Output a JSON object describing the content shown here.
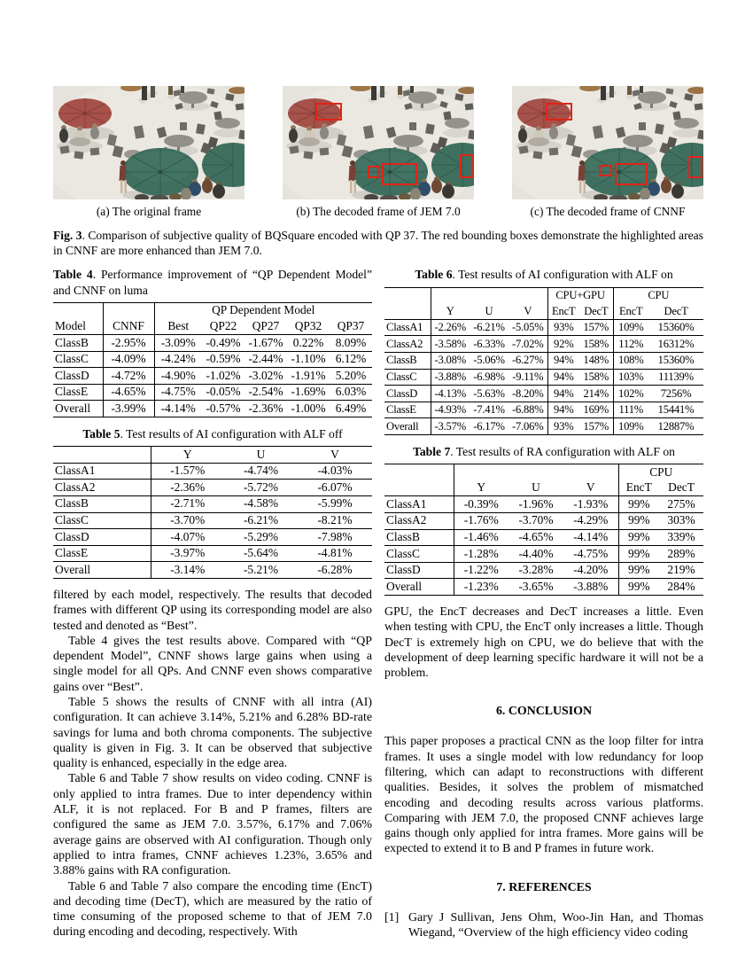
{
  "figure3": {
    "label": "Fig. 3",
    "caption": ". Comparison of subjective quality of BQSquare encoded with QP 37. The red bounding boxes demonstrate the highlighted areas in CNNF are more enhanced than JEM 7.0.",
    "captions": [
      "(a) The original frame",
      "(b) The decoded frame of JEM 7.0",
      "(c) The decoded frame of CNNF"
    ]
  },
  "tables": {
    "t4": {
      "label": "Table 4",
      "caption": ". Performance improvement of “QP Dependent Model” and CNNF on luma",
      "group_header": "QP Dependent Model",
      "headers": [
        "Model",
        "CNNF",
        "Best",
        "QP22",
        "QP27",
        "QP32",
        "QP37"
      ],
      "rows": [
        [
          "ClassB",
          "-2.95%",
          "-3.09%",
          "-0.49%",
          "-1.67%",
          "0.22%",
          "8.09%"
        ],
        [
          "ClassC",
          "-4.09%",
          "-4.24%",
          "-0.59%",
          "-2.44%",
          "-1.10%",
          "6.12%"
        ],
        [
          "ClassD",
          "-4.72%",
          "-4.90%",
          "-1.02%",
          "-3.02%",
          "-1.91%",
          "5.20%"
        ],
        [
          "ClassE",
          "-4.65%",
          "-4.75%",
          "-0.05%",
          "-2.54%",
          "-1.69%",
          "6.03%"
        ],
        [
          "Overall",
          "-3.99%",
          "-4.14%",
          "-0.57%",
          "-2.36%",
          "-1.00%",
          "6.49%"
        ]
      ]
    },
    "t5": {
      "label": "Table 5",
      "caption": ". Test results of AI configuration with ALF off",
      "headers": [
        "",
        "Y",
        "U",
        "V"
      ],
      "rows": [
        [
          "ClassA1",
          "-1.57%",
          "-4.74%",
          "-4.03%"
        ],
        [
          "ClassA2",
          "-2.36%",
          "-5.72%",
          "-6.07%"
        ],
        [
          "ClassB",
          "-2.71%",
          "-4.58%",
          "-5.99%"
        ],
        [
          "ClassC",
          "-3.70%",
          "-6.21%",
          "-8.21%"
        ],
        [
          "ClassD",
          "-4.07%",
          "-5.29%",
          "-7.98%"
        ],
        [
          "ClassE",
          "-3.97%",
          "-5.64%",
          "-4.81%"
        ],
        [
          "Overall",
          "-3.14%",
          "-5.21%",
          "-6.28%"
        ]
      ]
    },
    "t6": {
      "label": "Table 6",
      "caption": ". Test results of AI configuration with ALF on",
      "group_headers": [
        "CPU+GPU",
        "CPU"
      ],
      "headers": [
        "",
        "Y",
        "U",
        "V",
        "EncT",
        "DecT",
        "EncT",
        "DecT"
      ],
      "rows": [
        [
          "ClassA1",
          "-2.26%",
          "-6.21%",
          "-5.05%",
          "93%",
          "157%",
          "109%",
          "15360%"
        ],
        [
          "ClassA2",
          "-3.58%",
          "-6.33%",
          "-7.02%",
          "92%",
          "158%",
          "112%",
          "16312%"
        ],
        [
          "ClassB",
          "-3.08%",
          "-5.06%",
          "-6.27%",
          "94%",
          "148%",
          "108%",
          "15360%"
        ],
        [
          "ClassC",
          "-3.88%",
          "-6.98%",
          "-9.11%",
          "94%",
          "158%",
          "103%",
          "11139%"
        ],
        [
          "ClassD",
          "-4.13%",
          "-5.63%",
          "-8.20%",
          "94%",
          "214%",
          "102%",
          "7256%"
        ],
        [
          "ClassE",
          "-4.93%",
          "-7.41%",
          "-6.88%",
          "94%",
          "169%",
          "111%",
          "15441%"
        ],
        [
          "Overall",
          "-3.57%",
          "-6.17%",
          "-7.06%",
          "93%",
          "157%",
          "109%",
          "12887%"
        ]
      ]
    },
    "t7": {
      "label": "Table 7",
      "caption": ". Test results of RA configuration with ALF on",
      "group_header": "CPU",
      "headers": [
        "",
        "Y",
        "U",
        "V",
        "EncT",
        "DecT"
      ],
      "rows": [
        [
          "ClassA1",
          "-0.39%",
          "-1.96%",
          "-1.93%",
          "99%",
          "275%"
        ],
        [
          "ClassA2",
          "-1.76%",
          "-3.70%",
          "-4.29%",
          "99%",
          "303%"
        ],
        [
          "ClassB",
          "-1.46%",
          "-4.65%",
          "-4.14%",
          "99%",
          "339%"
        ],
        [
          "ClassC",
          "-1.28%",
          "-4.40%",
          "-4.75%",
          "99%",
          "289%"
        ],
        [
          "ClassD",
          "-1.22%",
          "-3.28%",
          "-4.20%",
          "99%",
          "219%"
        ],
        [
          "Overall",
          "-1.23%",
          "-3.65%",
          "-3.88%",
          "99%",
          "284%"
        ]
      ]
    }
  },
  "left_column": {
    "paragraphs": [
      "filtered by each model, respectively. The results that decoded frames with different QP using its corresponding model are also tested and denoted as “Best”.",
      "Table 4 gives the test results above. Compared with “QP dependent Model”, CNNF shows large gains when using a single model for all QPs. And CNNF even shows comparative gains over “Best”.",
      "Table 5 shows the results of CNNF with all intra (AI) configuration. It can achieve 3.14%, 5.21% and 6.28% BD-rate savings for luma and both chroma components. The subjective quality is given in Fig. 3. It can be observed that subjective quality is enhanced, especially in the edge area.",
      "Table 6 and Table 7 show results on video coding. CNNF is only applied to intra frames. Due to inter dependency within ALF, it is not replaced. For B and P frames, filters are configured the same as JEM 7.0. 3.57%, 6.17% and 7.06% average gains are observed with AI configuration. Though only applied to intra frames, CNNF achieves 1.23%, 3.65% and 3.88% gains with RA configuration.",
      "Table 6 and Table 7 also compare the encoding time (EncT) and decoding time (DecT), which are measured by the ratio of time consuming of the proposed scheme to that of JEM 7.0 during encoding and decoding, respectively. With"
    ]
  },
  "right_column": {
    "paragraph": "GPU, the EncT decreases and DecT increases a little. Even when testing with CPU, the EncT only increases a little. Though DecT is extremely high on CPU, we do believe that with the development of deep learning specific hardware it will not be a problem.",
    "conclusion_heading": "6. CONCLUSION",
    "conclusion": "This paper proposes a practical CNN as the loop filter for intra frames. It uses a single model with low redundancy for loop filtering, which can adapt to reconstructions with different qualities. Besides, it solves the problem of mismatched encoding and decoding results across various platforms. Comparing with JEM 7.0, the proposed CNNF achieves large gains though only applied for intra frames. More gains will be expected to extend it to B and P frames in future work.",
    "references_heading": "7. REFERENCES",
    "references": [
      {
        "num": "[1]",
        "text": "Gary J Sullivan, Jens Ohm, Woo-Jin Han, and Thomas Wiegand, “Overview of the high efficiency video coding"
      }
    ]
  },
  "colors": {
    "bounding_box_red": "#e02417",
    "umbrella_red": "#a6514a",
    "umbrella_green": "#3f705f"
  }
}
